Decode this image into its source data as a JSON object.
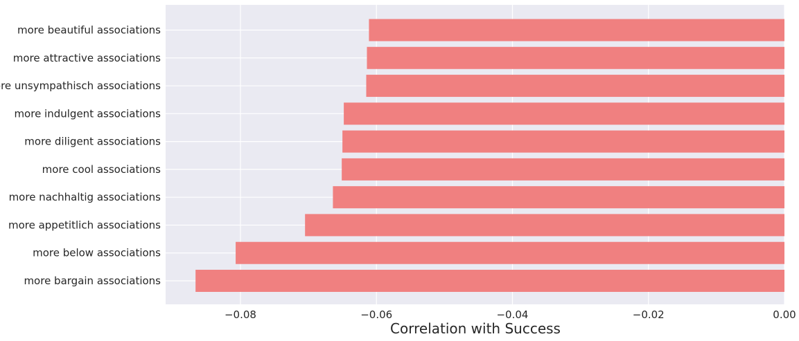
{
  "chart_data": {
    "type": "bar",
    "orientation": "horizontal",
    "title": "",
    "xlabel": "Correlation with Success",
    "ylabel": "",
    "xlim": [
      -0.091,
      0.0
    ],
    "xticks": [
      -0.08,
      -0.06,
      -0.04,
      -0.02,
      0.0
    ],
    "xtick_labels": [
      "−0.08",
      "−0.06",
      "−0.04",
      "−0.02",
      "0.00"
    ],
    "grid": true,
    "bar_color": "#f08080",
    "background_color": "#eaeaf2",
    "categories": [
      "more beautiful associations",
      "more attractive associations",
      "more unsympathisch associations",
      "more indulgent associations",
      "more diligent associations",
      "more cool associations",
      "more nachhaltig associations",
      "more appetitlich associations",
      "more below associations",
      "more bargain associations"
    ],
    "values": [
      -0.0611,
      -0.0614,
      -0.0615,
      -0.0648,
      -0.065,
      -0.0651,
      -0.0664,
      -0.0705,
      -0.0807,
      -0.0866
    ]
  }
}
